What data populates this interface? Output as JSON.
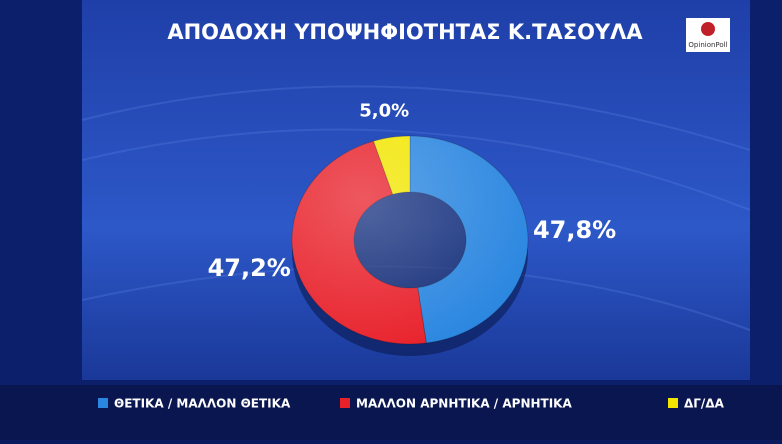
{
  "chart_data": {
    "type": "donut",
    "title": "ΑΠΟΔΟΧΗ ΥΠΟΨΗΦΙΟΤΗΤΑΣ Κ.ΤΑΣΟΥΛΑ",
    "source": "OpinionPoll",
    "categories": [
      "ΘΕΤΙΚΑ / ΜΑΛΛΟΝ ΘΕΤΙΚΑ",
      "ΜΑΛΛΟΝ ΑΡΝΗΤΙΚΑ / ΑΡΝΗΤΙΚΑ",
      "ΔΓ/ΔΑ"
    ],
    "values": [
      47.8,
      47.2,
      5.0
    ],
    "value_labels": [
      "47,8%",
      "47,2%",
      "5,0%"
    ],
    "colors": [
      "#2a86e0",
      "#e8202a",
      "#f2e600"
    ]
  }
}
